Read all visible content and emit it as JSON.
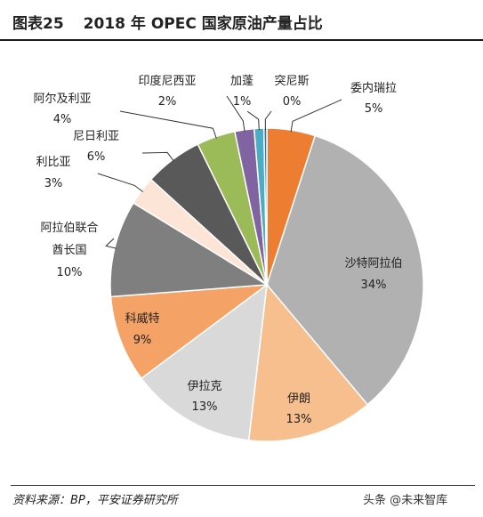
{
  "figure": {
    "number": "图表25",
    "title": "2018 年 OPEC 国家原油产量占比"
  },
  "source": "资料来源：BP，平安证券研究所",
  "watermark": "头条 @未来智库",
  "chart_data": {
    "type": "pie",
    "start_angle_deg": 0,
    "direction": "clockwise",
    "slices": [
      {
        "label": "委内瑞拉",
        "value": 5,
        "pct_label": "5%",
        "color": "#ed7d31",
        "label_placement": "outside"
      },
      {
        "label": "沙特阿拉伯",
        "value": 34,
        "pct_label": "34%",
        "color": "#b1b1b1",
        "label_placement": "inside"
      },
      {
        "label": "伊朗",
        "value": 13,
        "pct_label": "13%",
        "color": "#f7be8e",
        "label_placement": "inside"
      },
      {
        "label": "伊拉克",
        "value": 13,
        "pct_label": "13%",
        "color": "#d9d9d9",
        "label_placement": "inside"
      },
      {
        "label": "科威特",
        "value": 9,
        "pct_label": "9%",
        "color": "#f4a266",
        "label_placement": "inside"
      },
      {
        "label": "阿拉伯联合酋长国",
        "label_lines": [
          "阿拉伯联合",
          "酋长国"
        ],
        "value": 10,
        "pct_label": "10%",
        "color": "#7f7f7f",
        "label_placement": "outside"
      },
      {
        "label": "利比亚",
        "value": 3,
        "pct_label": "3%",
        "color": "#fce4d6",
        "label_placement": "outside"
      },
      {
        "label": "尼日利亚",
        "value": 6,
        "pct_label": "6%",
        "color": "#595959",
        "label_placement": "outside"
      },
      {
        "label": "阿尔及利亚",
        "value": 4,
        "pct_label": "4%",
        "color": "#9bbb59",
        "label_placement": "outside"
      },
      {
        "label": "印度尼西亚",
        "value": 2,
        "pct_label": "2%",
        "color": "#8064a2",
        "label_placement": "outside"
      },
      {
        "label": "加蓬",
        "value": 1,
        "pct_label": "1%",
        "color": "#4bacc6",
        "label_placement": "outside"
      },
      {
        "label": "突尼斯",
        "value": 0.3,
        "pct_label": "0%",
        "color": "#2e75b6",
        "label_placement": "outside"
      }
    ]
  }
}
